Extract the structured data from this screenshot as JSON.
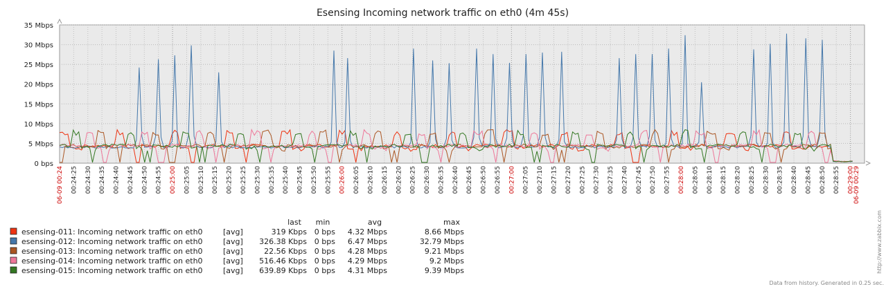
{
  "chart_data": {
    "type": "line",
    "title": "Esensing Incoming network traffic on eth0 (4m 45s)",
    "ylim": [
      0,
      35
    ],
    "y_unit": "Mbps",
    "y_ticks": [
      "0 bps",
      "5 Mbps",
      "10 Mbps",
      "15 Mbps",
      "20 Mbps",
      "25 Mbps",
      "30 Mbps",
      "35 Mbps"
    ],
    "x_start_label": "06-09 00:24",
    "x_end_label": "06-09 00:29",
    "x_ticks": [
      "00:24:25",
      "00:24:30",
      "00:24:35",
      "00:24:40",
      "00:24:45",
      "00:24:50",
      "00:24:55",
      "00:25:00",
      "00:25:05",
      "00:25:10",
      "00:25:15",
      "00:25:20",
      "00:25:25",
      "00:25:30",
      "00:25:35",
      "00:25:40",
      "00:25:45",
      "00:25:50",
      "00:25:55",
      "00:26:00",
      "00:26:05",
      "00:26:10",
      "00:26:15",
      "00:26:20",
      "00:26:25",
      "00:26:30",
      "00:26:35",
      "00:26:40",
      "00:26:45",
      "00:26:50",
      "00:26:55",
      "00:27:00",
      "00:27:05",
      "00:27:10",
      "00:27:15",
      "00:27:20",
      "00:27:25",
      "00:27:30",
      "00:27:35",
      "00:27:40",
      "00:27:45",
      "00:27:50",
      "00:27:55",
      "00:28:00",
      "00:28:05",
      "00:28:10",
      "00:28:15",
      "00:28:20",
      "00:28:25",
      "00:28:30",
      "00:28:35",
      "00:28:40",
      "00:28:45",
      "00:28:50",
      "00:28:55",
      "00:29:00"
    ],
    "x_tick_highlight": [
      "00:25:00",
      "00:26:00",
      "00:27:00",
      "00:28:00",
      "00:29:00"
    ],
    "grid": true,
    "blue_spikes_x": [
      10.2,
      12.3,
      14.4,
      16.5,
      20.2,
      34.5,
      36.5,
      44.8,
      46.9,
      49.0,
      52.5,
      54.6,
      56.7,
      58.8,
      61.0,
      63.2,
      70.5,
      72.6,
      74.7,
      76.8,
      78.9,
      81.0,
      87.6,
      89.7,
      91.8,
      94.0,
      96.1,
      98.2
    ],
    "blue_spikes_y": [
      24.2,
      26.3,
      27.3,
      29.8,
      23.0,
      28.5,
      26.6,
      29.0,
      26.0,
      25.3,
      29.0,
      27.6,
      25.4,
      27.6,
      28.0,
      28.2,
      26.6,
      27.6,
      27.6,
      29.0,
      32.4,
      20.5,
      28.8,
      30.2,
      32.8,
      31.6,
      31.2,
      9.0
    ],
    "series": [
      {
        "name": "esensing-011: Incoming network traffic on eth0",
        "color": "#ee3311",
        "agg": "[avg]",
        "last": "319 Kbps",
        "min": "0 bps",
        "avg": "4.32 Mbps",
        "max": "8.66 Mbps"
      },
      {
        "name": "esensing-012: Incoming network traffic on eth0",
        "color": "#4477aa",
        "agg": "[avg]",
        "last": "326.38 Kbps",
        "min": "0 bps",
        "avg": "6.47 Mbps",
        "max": "32.79 Mbps"
      },
      {
        "name": "esensing-013: Incoming network traffic on eth0",
        "color": "#aa5522",
        "agg": "[avg]",
        "last": "22.56 Kbps",
        "min": "0 bps",
        "avg": "4.28 Mbps",
        "max": "9.21 Mbps"
      },
      {
        "name": "esensing-014: Incoming network traffic on eth0",
        "color": "#ee7799",
        "agg": "[avg]",
        "last": "516.46 Kbps",
        "min": "0 bps",
        "avg": "4.29 Mbps",
        "max": "9.2 Mbps"
      },
      {
        "name": "esensing-015: Incoming network traffic on eth0",
        "color": "#337722",
        "agg": "[avg]",
        "last": "639.89 Kbps",
        "min": "0 bps",
        "avg": "4.31 Mbps",
        "max": "9.39 Mbps"
      }
    ]
  },
  "legend_headers": {
    "last": "last",
    "min": "min",
    "avg": "avg",
    "max": "max"
  },
  "side_watermark": "http://www.zabbix.com",
  "footer_note": "Data from history. Generated in 0.25 sec."
}
